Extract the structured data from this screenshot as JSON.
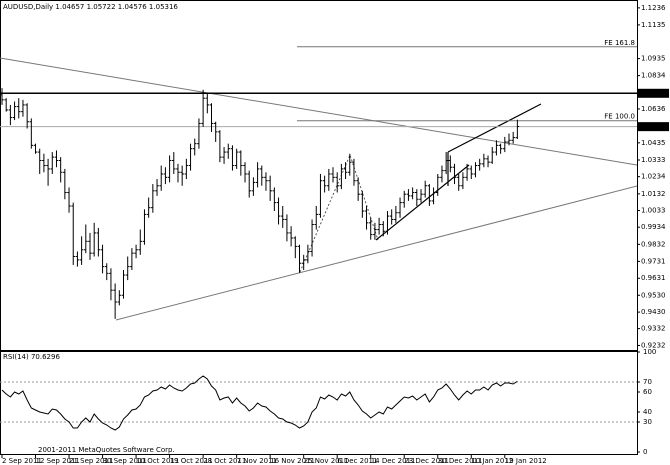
{
  "chart_data": [
    {
      "type": "ohlc",
      "title": "AUDUSD,Daily 1.04657 1.05722 1.04576 1.05316",
      "categories": [
        "2 Sep 2011",
        null,
        null,
        null,
        null,
        null,
        null,
        null,
        "12 Sep 2011",
        null,
        null,
        null,
        null,
        null,
        null,
        null,
        "21 Sep 2011",
        null,
        null,
        null,
        null,
        null,
        null,
        null,
        "30 Sep 2011",
        null,
        null,
        null,
        null,
        null,
        null,
        null,
        "10 Oct 2011",
        null,
        null,
        null,
        null,
        null,
        null,
        null,
        "19 Oct 2011",
        null,
        null,
        null,
        null,
        null,
        null,
        null,
        "28 Oct 2011",
        null,
        null,
        null,
        null,
        null,
        null,
        null,
        "7 Nov 2011",
        null,
        null,
        null,
        null,
        null,
        null,
        null,
        "16 Nov 2011",
        null,
        null,
        null,
        null,
        null,
        null,
        null,
        "25 Nov 2011",
        null,
        null,
        null,
        null,
        null,
        null,
        null,
        "6 Dec 2011",
        null,
        null,
        null,
        null,
        null,
        null,
        null,
        "14 Dec 2011",
        null,
        null,
        null,
        null,
        null,
        null,
        null,
        "23 Dec 2011",
        null,
        null,
        null,
        null,
        null,
        null,
        null,
        "30 Dec 2011",
        null,
        null,
        null,
        null,
        null,
        null,
        null,
        "10 Jan 2012",
        null,
        null,
        null,
        null,
        null,
        null,
        null,
        "19 Jan 2012",
        null,
        null,
        null
      ],
      "open": [
        1.072,
        1.069,
        1.063,
        1.0585,
        1.065,
        1.062,
        1.066,
        1.056,
        1.042,
        1.038,
        1.033,
        1.03,
        1.028,
        1.035,
        1.033,
        1.026,
        1.014,
        1.006,
        0.976,
        0.974,
        0.98,
        0.985,
        0.978,
        0.99,
        0.98,
        0.97,
        0.966,
        0.956,
        0.949,
        0.953,
        0.965,
        0.97,
        0.978,
        0.98,
        0.985,
        1.001,
        1.005,
        1.015,
        1.018,
        1.025,
        1.023,
        1.033,
        1.028,
        1.026,
        1.025,
        1.03,
        1.04,
        1.043,
        1.055,
        1.07,
        1.066,
        1.055,
        1.05,
        1.035,
        1.038,
        1.04,
        1.03,
        1.038,
        1.03,
        1.025,
        1.015,
        1.02,
        1.028,
        1.023,
        1.021,
        1.015,
        1.008,
        1.0,
        0.998,
        0.99,
        0.987,
        0.982,
        0.972,
        0.974,
        0.979,
        0.995,
        1.001,
        1.021,
        1.018,
        1.025,
        1.023,
        1.018,
        1.028,
        1.026,
        1.032,
        1.021,
        1.013,
        1.003,
        0.996,
        0.989,
        0.992,
        0.995,
        0.991,
        1.0,
        0.998,
        1.002,
        1.008,
        1.013,
        1.012,
        1.014,
        1.01,
        1.013,
        1.018,
        1.009,
        1.014,
        1.023,
        1.027,
        1.033,
        1.029,
        1.023,
        1.018,
        1.023,
        1.028,
        1.025,
        1.03,
        1.031,
        1.034,
        1.032,
        1.038,
        1.042,
        1.04,
        1.044,
        1.045,
        1.04657
      ],
      "high": [
        1.076,
        1.07,
        1.066,
        1.068,
        1.07,
        1.069,
        1.067,
        1.058,
        1.043,
        1.04,
        1.037,
        1.034,
        1.038,
        1.039,
        1.035,
        1.028,
        1.017,
        1.008,
        0.979,
        0.988,
        0.995,
        0.99,
        0.996,
        0.993,
        0.983,
        0.972,
        0.969,
        0.96,
        0.956,
        0.968,
        0.976,
        0.981,
        0.983,
        0.992,
        1.004,
        1.011,
        1.019,
        1.022,
        1.03,
        1.029,
        1.036,
        1.038,
        1.031,
        1.03,
        1.034,
        1.043,
        1.046,
        1.058,
        1.075,
        1.073,
        1.067,
        1.056,
        1.051,
        1.041,
        1.043,
        1.042,
        1.04,
        1.039,
        1.032,
        1.027,
        1.023,
        1.032,
        1.03,
        1.026,
        1.024,
        1.017,
        1.011,
        1.006,
        1.001,
        0.994,
        0.988,
        0.983,
        0.977,
        0.983,
        0.998,
        1.006,
        1.025,
        1.024,
        1.028,
        1.029,
        1.026,
        1.031,
        1.032,
        1.037,
        1.034,
        1.023,
        1.015,
        1.006,
        0.999,
        0.996,
        0.999,
        0.997,
        1.003,
        1.004,
        1.006,
        1.011,
        1.015,
        1.016,
        1.017,
        1.016,
        1.016,
        1.021,
        1.019,
        1.017,
        1.025,
        1.03,
        1.038,
        1.036,
        1.031,
        1.025,
        1.026,
        1.031,
        1.03,
        1.032,
        1.034,
        1.037,
        1.036,
        1.041,
        1.045,
        1.043,
        1.047,
        1.049,
        1.05,
        1.05722
      ],
      "low": [
        1.066,
        1.062,
        1.054,
        1.057,
        1.058,
        1.059,
        1.052,
        1.04,
        1.037,
        1.025,
        1.026,
        1.018,
        1.025,
        1.029,
        1.02,
        1.01,
        1.002,
        0.971,
        0.97,
        0.971,
        0.978,
        0.974,
        0.976,
        0.976,
        0.966,
        0.962,
        0.95,
        0.939,
        0.947,
        0.951,
        0.962,
        0.968,
        0.975,
        0.977,
        0.983,
        0.999,
        1.002,
        1.012,
        1.015,
        1.019,
        1.02,
        1.025,
        1.02,
        1.018,
        1.022,
        1.027,
        1.036,
        1.04,
        1.053,
        1.061,
        1.05,
        1.044,
        1.032,
        1.031,
        1.034,
        1.027,
        1.028,
        1.024,
        1.02,
        1.011,
        1.012,
        1.017,
        1.018,
        1.015,
        1.009,
        1.003,
        0.995,
        0.993,
        0.985,
        0.982,
        0.975,
        0.9663,
        0.968,
        0.972,
        0.976,
        0.992,
        0.999,
        1.014,
        1.015,
        1.02,
        1.014,
        1.016,
        1.022,
        1.024,
        1.018,
        1.009,
        0.999,
        0.992,
        0.986,
        0.986,
        0.989,
        0.988,
        0.989,
        0.995,
        0.996,
        0.999,
        1.005,
        1.009,
        1.01,
        1.006,
        1.008,
        1.011,
        1.006,
        1.007,
        1.012,
        1.02,
        1.025,
        1.026,
        1.019,
        1.015,
        1.016,
        1.021,
        1.022,
        1.023,
        1.027,
        1.029,
        1.029,
        1.031,
        1.036,
        1.037,
        1.038,
        1.042,
        1.043,
        1.04576
      ],
      "close": [
        1.069,
        1.063,
        1.0585,
        1.065,
        1.062,
        1.066,
        1.056,
        1.042,
        1.038,
        1.033,
        1.03,
        1.028,
        1.035,
        1.033,
        1.026,
        1.014,
        1.006,
        0.976,
        0.974,
        0.98,
        0.985,
        0.978,
        0.99,
        0.98,
        0.97,
        0.966,
        0.956,
        0.949,
        0.953,
        0.965,
        0.97,
        0.978,
        0.98,
        0.985,
        1.001,
        1.005,
        1.015,
        1.018,
        1.025,
        1.023,
        1.033,
        1.028,
        1.026,
        1.025,
        1.03,
        1.04,
        1.043,
        1.055,
        1.07,
        1.066,
        1.055,
        1.05,
        1.035,
        1.038,
        1.04,
        1.03,
        1.038,
        1.03,
        1.025,
        1.015,
        1.02,
        1.028,
        1.023,
        1.021,
        1.015,
        1.008,
        1.0,
        0.998,
        0.99,
        0.987,
        0.982,
        0.972,
        0.974,
        0.979,
        0.995,
        1.001,
        1.021,
        1.018,
        1.025,
        1.023,
        1.018,
        1.028,
        1.026,
        1.032,
        1.021,
        1.013,
        1.003,
        0.996,
        0.989,
        0.992,
        0.995,
        0.991,
        1.0,
        0.998,
        1.002,
        1.008,
        1.013,
        1.012,
        1.014,
        1.01,
        1.013,
        1.018,
        1.009,
        1.014,
        1.023,
        1.027,
        1.033,
        1.029,
        1.023,
        1.018,
        1.023,
        1.028,
        1.025,
        1.03,
        1.031,
        1.034,
        1.032,
        1.038,
        1.042,
        1.04,
        1.044,
        1.045,
        1.0466,
        1.05316
      ],
      "color": "#000000",
      "ylim": [
        0.9205,
        1.1265
      ],
      "yticks": [
        1.1236,
        1.1135,
        1.0935,
        1.0834,
        1.0636,
        1.0435,
        1.0333,
        1.0234,
        1.0132,
        1.0033,
        0.9934,
        0.9832,
        0.9731,
        0.9631,
        {
          "value": 0.953,
          "label": "0.9530"
        },
        {
          "value": 0.943,
          "label": "0.9430"
        },
        0.9332,
        0.9232
      ],
      "levels": [
        {
          "label": "FE 161.8",
          "value": 1.1005
        },
        {
          "label": "FE 100.0",
          "value": 1.0566
        }
      ],
      "price_markers": [
        1.0729,
        1.0531
      ]
    },
    {
      "type": "line",
      "title": "RSI(14) 70.6296",
      "values": [
        62,
        58,
        55,
        60,
        58,
        61,
        52,
        44,
        42,
        40,
        39,
        38,
        43,
        42,
        38,
        33,
        30,
        24,
        24,
        30,
        34,
        30,
        38,
        33,
        29,
        27,
        24,
        22,
        25,
        33,
        37,
        42,
        43,
        47,
        55,
        57,
        61,
        62,
        65,
        63,
        67,
        64,
        62,
        61,
        64,
        68,
        69,
        73,
        76,
        73,
        66,
        62,
        52,
        54,
        55,
        49,
        54,
        49,
        46,
        41,
        44,
        49,
        46,
        45,
        41,
        38,
        34,
        33,
        30,
        29,
        27,
        24,
        26,
        30,
        40,
        44,
        55,
        53,
        57,
        55,
        52,
        58,
        56,
        60,
        52,
        47,
        41,
        38,
        34,
        37,
        40,
        38,
        45,
        43,
        47,
        51,
        55,
        54,
        56,
        52,
        55,
        58,
        50,
        55,
        62,
        64,
        68,
        63,
        57,
        52,
        57,
        61,
        58,
        62,
        62,
        65,
        62,
        67,
        69,
        66,
        69,
        69,
        68,
        70.6296
      ],
      "color": "#000000",
      "ylim": [
        0,
        100
      ],
      "yticks": [
        100,
        70,
        60,
        40,
        30,
        0
      ],
      "levels": [
        70,
        30
      ]
    }
  ],
  "footer": "2001-2011 MetaQuotes Software Corp."
}
